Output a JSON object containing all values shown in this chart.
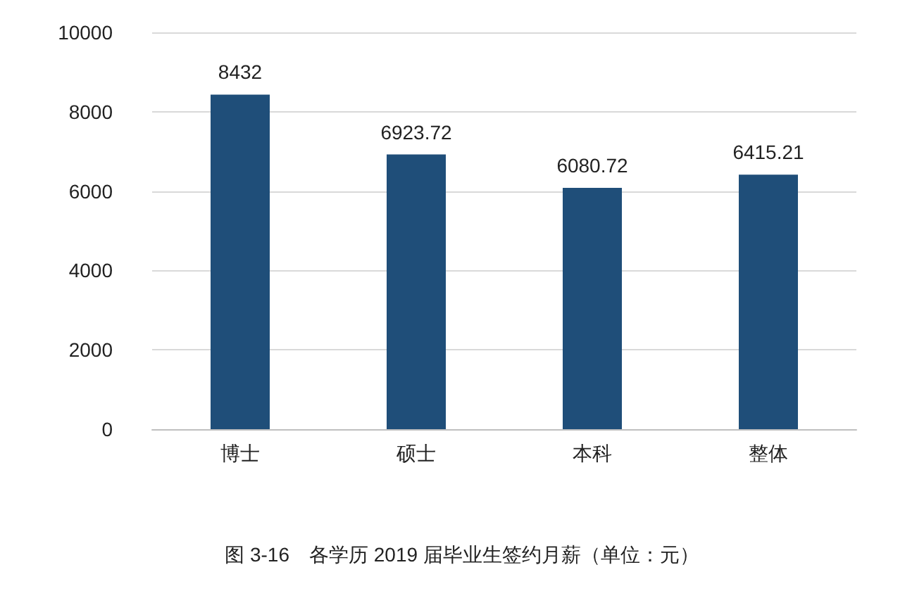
{
  "chart_data": {
    "type": "bar",
    "title": "图 3-16　各学历 2019 届毕业生签约月薪（单位：元）",
    "categories": [
      "博士",
      "硕士",
      "本科",
      "整体"
    ],
    "values": [
      8432,
      6923.72,
      6080.72,
      6415.21
    ],
    "color": "#1f4e79",
    "ylim": [
      0,
      10000
    ],
    "yticks": [
      0,
      2000,
      4000,
      6000,
      8000,
      10000
    ],
    "grid": true,
    "data_labels": true
  }
}
